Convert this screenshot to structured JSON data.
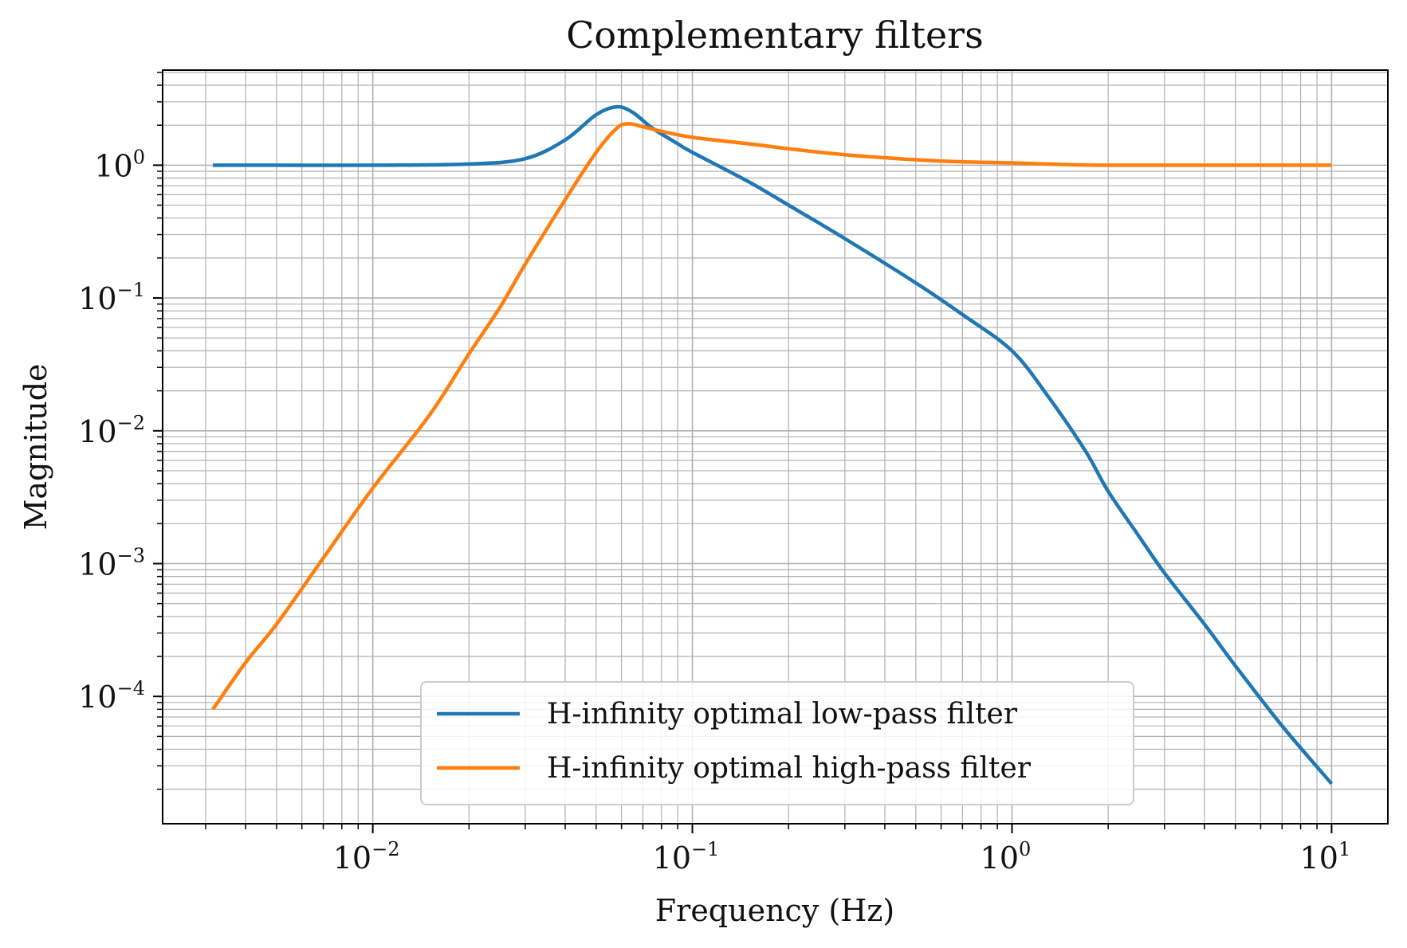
{
  "chart_data": {
    "type": "line",
    "title": "Complementary filters",
    "xlabel": "Frequency (Hz)",
    "ylabel": "Magnitude",
    "xscale": "log",
    "yscale": "log",
    "xlim": [
      0.0022,
      15
    ],
    "ylim": [
      1.1e-05,
      5.2
    ],
    "grid": "major and minor",
    "legend_position": "lower-center",
    "x_ticks": [
      {
        "value": 0.01,
        "base": "10",
        "exp": "−2"
      },
      {
        "value": 0.1,
        "base": "10",
        "exp": "−1"
      },
      {
        "value": 1,
        "base": "10",
        "exp": "0"
      },
      {
        "value": 10,
        "base": "10",
        "exp": "1"
      }
    ],
    "y_ticks": [
      {
        "value": 0.0001,
        "base": "10",
        "exp": "−4"
      },
      {
        "value": 0.001,
        "base": "10",
        "exp": "−3"
      },
      {
        "value": 0.01,
        "base": "10",
        "exp": "−2"
      },
      {
        "value": 0.1,
        "base": "10",
        "exp": "−1"
      },
      {
        "value": 1,
        "base": "10",
        "exp": "0"
      }
    ],
    "series": [
      {
        "name": "H-infinity optimal low-pass filter",
        "color": "#1f77b4",
        "points": [
          [
            0.00316,
            1.0
          ],
          [
            0.005,
            1.0
          ],
          [
            0.01,
            1.0
          ],
          [
            0.02,
            1.02
          ],
          [
            0.03,
            1.12
          ],
          [
            0.04,
            1.55
          ],
          [
            0.05,
            2.4
          ],
          [
            0.058,
            2.75
          ],
          [
            0.065,
            2.5
          ],
          [
            0.075,
            1.9
          ],
          [
            0.09,
            1.45
          ],
          [
            0.1,
            1.25
          ],
          [
            0.15,
            0.75
          ],
          [
            0.2,
            0.5
          ],
          [
            0.3,
            0.28
          ],
          [
            0.5,
            0.13
          ],
          [
            0.7,
            0.075
          ],
          [
            1.0,
            0.04
          ],
          [
            1.3,
            0.018
          ],
          [
            1.7,
            0.007
          ],
          [
            2.0,
            0.0035
          ],
          [
            2.5,
            0.0016
          ],
          [
            3.0,
            0.00085
          ],
          [
            4.0,
            0.00035
          ],
          [
            5.0,
            0.00017
          ],
          [
            7.0,
            6e-05
          ],
          [
            10.0,
            2.2e-05
          ]
        ]
      },
      {
        "name": "H-infinity optimal high-pass filter",
        "color": "#ff7f0e",
        "points": [
          [
            0.00316,
            8e-05
          ],
          [
            0.004,
            0.00018
          ],
          [
            0.005,
            0.00035
          ],
          [
            0.007,
            0.0011
          ],
          [
            0.01,
            0.0037
          ],
          [
            0.015,
            0.013
          ],
          [
            0.02,
            0.038
          ],
          [
            0.025,
            0.085
          ],
          [
            0.03,
            0.18
          ],
          [
            0.04,
            0.55
          ],
          [
            0.05,
            1.25
          ],
          [
            0.058,
            1.9
          ],
          [
            0.063,
            2.05
          ],
          [
            0.07,
            1.95
          ],
          [
            0.08,
            1.8
          ],
          [
            0.1,
            1.62
          ],
          [
            0.15,
            1.45
          ],
          [
            0.2,
            1.33
          ],
          [
            0.3,
            1.2
          ],
          [
            0.5,
            1.1
          ],
          [
            0.7,
            1.06
          ],
          [
            1.0,
            1.04
          ],
          [
            1.5,
            1.01
          ],
          [
            2.0,
            1.0
          ],
          [
            5.0,
            1.0
          ],
          [
            10.0,
            1.0
          ]
        ]
      }
    ]
  }
}
